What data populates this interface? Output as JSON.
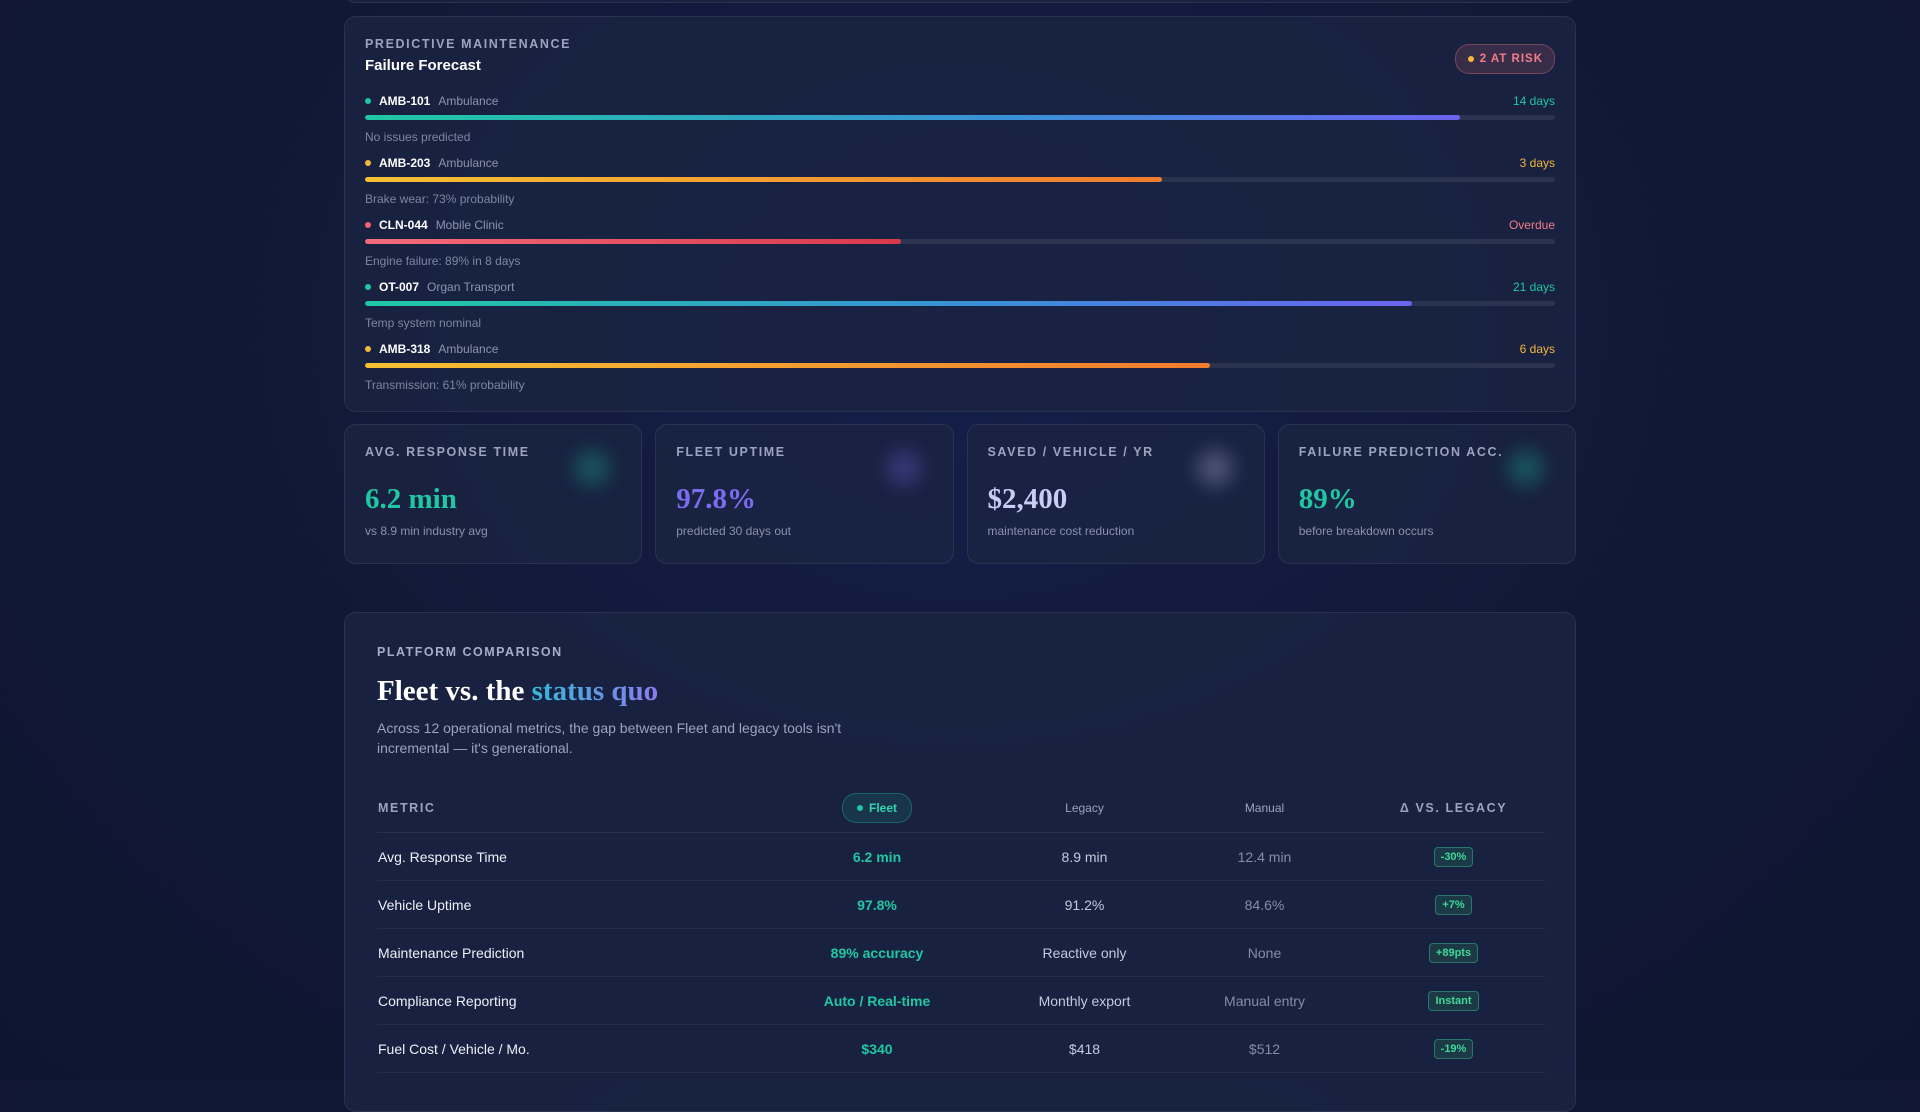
{
  "forecast": {
    "eyebrow": "PREDICTIVE MAINTENANCE",
    "title": "Failure Forecast",
    "risk_badge": "2 AT RISK",
    "vehicles": [
      {
        "id": "AMB-101",
        "type": "Ambulance",
        "eta": "14 days",
        "note": "No issues predicted",
        "status": "green",
        "progress": 0.92
      },
      {
        "id": "AMB-203",
        "type": "Ambulance",
        "eta": "3 days",
        "note": "Brake wear: 73% probability",
        "status": "amber",
        "progress": 0.67
      },
      {
        "id": "CLN-044",
        "type": "Mobile Clinic",
        "eta": "Overdue",
        "note": "Engine failure: 89% in 8 days",
        "status": "red",
        "progress": 0.45
      },
      {
        "id": "OT-007",
        "type": "Organ Transport",
        "eta": "21 days",
        "note": "Temp system nominal",
        "status": "green",
        "progress": 0.88
      },
      {
        "id": "AMB-318",
        "type": "Ambulance",
        "eta": "6 days",
        "note": "Transmission: 61% probability",
        "status": "amber",
        "progress": 0.71
      }
    ]
  },
  "kpis": [
    {
      "label": "AVG. RESPONSE TIME",
      "value": "6.2 min",
      "sub": "vs 8.9 min industry avg",
      "color": "#1fc8a3"
    },
    {
      "label": "FLEET UPTIME",
      "value": "97.8%",
      "sub": "predicted 30 days out",
      "color": "#7b6cf2"
    },
    {
      "label": "SAVED / VEHICLE / YR",
      "value": "$2,400",
      "sub": "maintenance cost reduction",
      "color": "#c9cdf5"
    },
    {
      "label": "FAILURE PREDICTION ACC.",
      "value": "89%",
      "sub": "before breakdown occurs",
      "color": "#1fc8a3"
    }
  ],
  "comparison": {
    "eyebrow": "PLATFORM COMPARISON",
    "headline_prefix": "Fleet vs. the",
    "headline_accent": "status quo",
    "description": "Across 12 operational metrics, the gap between Fleet and legacy tools isn't incremental — it's generational.",
    "columns": {
      "metric": "METRIC",
      "fleet": "Fleet",
      "legacy": "Legacy",
      "manual": "Manual",
      "delta": "Δ VS. LEGACY"
    },
    "rows": [
      {
        "metric": "Avg. Response Time",
        "fleet": "6.2 min",
        "legacy": "8.9 min",
        "manual": "12.4 min",
        "delta": "-30%"
      },
      {
        "metric": "Vehicle Uptime",
        "fleet": "97.8%",
        "legacy": "91.2%",
        "manual": "84.6%",
        "delta": "+7%"
      },
      {
        "metric": "Maintenance Prediction",
        "fleet": "89% accuracy",
        "legacy": "Reactive only",
        "manual": "None",
        "delta": "+89pts"
      },
      {
        "metric": "Compliance Reporting",
        "fleet": "Auto / Real-time",
        "legacy": "Monthly export",
        "manual": "Manual entry",
        "delta": "Instant"
      },
      {
        "metric": "Fuel Cost / Vehicle / Mo.",
        "fleet": "$340",
        "legacy": "$418",
        "manual": "$512",
        "delta": "-19%"
      }
    ]
  }
}
